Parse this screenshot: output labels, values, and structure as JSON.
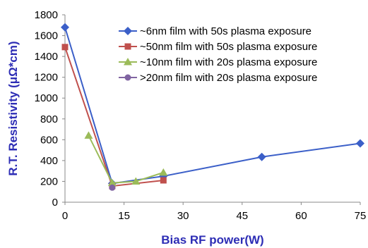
{
  "chart_data": {
    "type": "line",
    "title": "",
    "xlabel": "Bias RF power(W)",
    "ylabel": "R.T. Resistivity (μΩ*cm)",
    "axis_title_color": "#2d2db5",
    "xlim": [
      0,
      75
    ],
    "ylim": [
      0,
      1800
    ],
    "xticks": [
      0,
      15,
      30,
      45,
      60,
      75
    ],
    "yticks": [
      0,
      200,
      400,
      600,
      800,
      1000,
      1200,
      1400,
      1600,
      1800
    ],
    "grid": false,
    "legend_position": "top-right",
    "series": [
      {
        "name": "~6nm film with 50s plasma exposure",
        "color": "#3b5fc8",
        "marker": "diamond",
        "x": [
          0,
          12,
          25,
          50,
          75
        ],
        "y": [
          1680,
          180,
          250,
          435,
          565
        ]
      },
      {
        "name": "~50nm film with 50s plasma exposure",
        "color": "#c0504d",
        "marker": "square",
        "x": [
          0,
          12,
          25
        ],
        "y": [
          1490,
          155,
          210
        ]
      },
      {
        "name": "~10nm film with 20s plasma exposure",
        "color": "#9bbb59",
        "marker": "triangle",
        "x": [
          6,
          12,
          18,
          25
        ],
        "y": [
          640,
          185,
          200,
          285
        ]
      },
      {
        "name": ">20nm film with 20s plasma exposure",
        "color": "#8064a2",
        "marker": "circle",
        "x": [
          12
        ],
        "y": [
          140
        ]
      }
    ]
  }
}
